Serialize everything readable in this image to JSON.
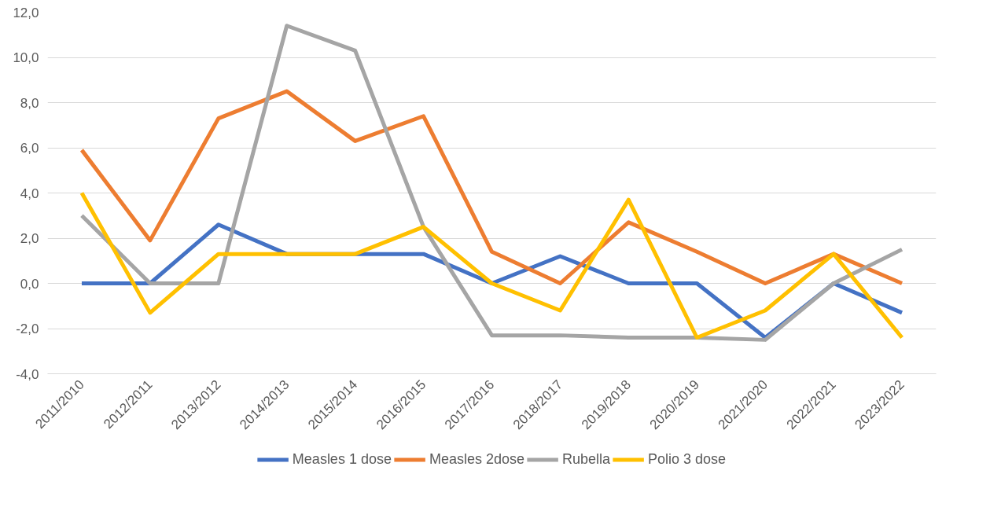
{
  "chart_data": {
    "type": "line",
    "categories": [
      "2011/2010",
      "2012/2011",
      "2013/2012",
      "2014/2013",
      "2015/2014",
      "2016/2015",
      "2017/2016",
      "2018/2017",
      "2019/2018",
      "2020/2019",
      "2021/2020",
      "2022/2021",
      "2023/2022"
    ],
    "series": [
      {
        "name": "Measles 1 dose",
        "color": "#4472c4",
        "values": [
          0,
          0,
          2.6,
          1.3,
          1.3,
          1.3,
          0,
          1.2,
          0,
          0,
          -2.4,
          0,
          -1.3
        ]
      },
      {
        "name": "Measles 2dose",
        "color": "#ed7d31",
        "values": [
          5.9,
          1.9,
          7.3,
          8.5,
          6.3,
          7.4,
          1.4,
          0,
          2.7,
          1.4,
          0,
          1.3,
          0
        ]
      },
      {
        "name": "Rubella",
        "color": "#a5a5a5",
        "values": [
          3.0,
          0,
          0,
          11.4,
          10.3,
          2.5,
          -2.3,
          -2.3,
          -2.4,
          -2.4,
          -2.5,
          0,
          1.5
        ]
      },
      {
        "name": "Polio 3 dose",
        "color": "#ffc000",
        "values": [
          4.0,
          -1.3,
          1.3,
          1.3,
          1.3,
          2.5,
          0,
          -1.2,
          3.7,
          -2.4,
          -1.2,
          1.3,
          -2.4
        ]
      }
    ],
    "ylim": [
      -4,
      12
    ],
    "yticks": [
      {
        "value": -4,
        "label": "-4,0"
      },
      {
        "value": -2,
        "label": "-2,0"
      },
      {
        "value": 0,
        "label": "0,0"
      },
      {
        "value": 2,
        "label": "2,0"
      },
      {
        "value": 4,
        "label": "4,0"
      },
      {
        "value": 6,
        "label": "6,0"
      },
      {
        "value": 8,
        "label": "8,0"
      },
      {
        "value": 10,
        "label": "10,0"
      },
      {
        "value": 12,
        "label": "12,0"
      }
    ],
    "grid": "y",
    "legend": "bottom",
    "marker": "none",
    "line_style": "solid"
  }
}
